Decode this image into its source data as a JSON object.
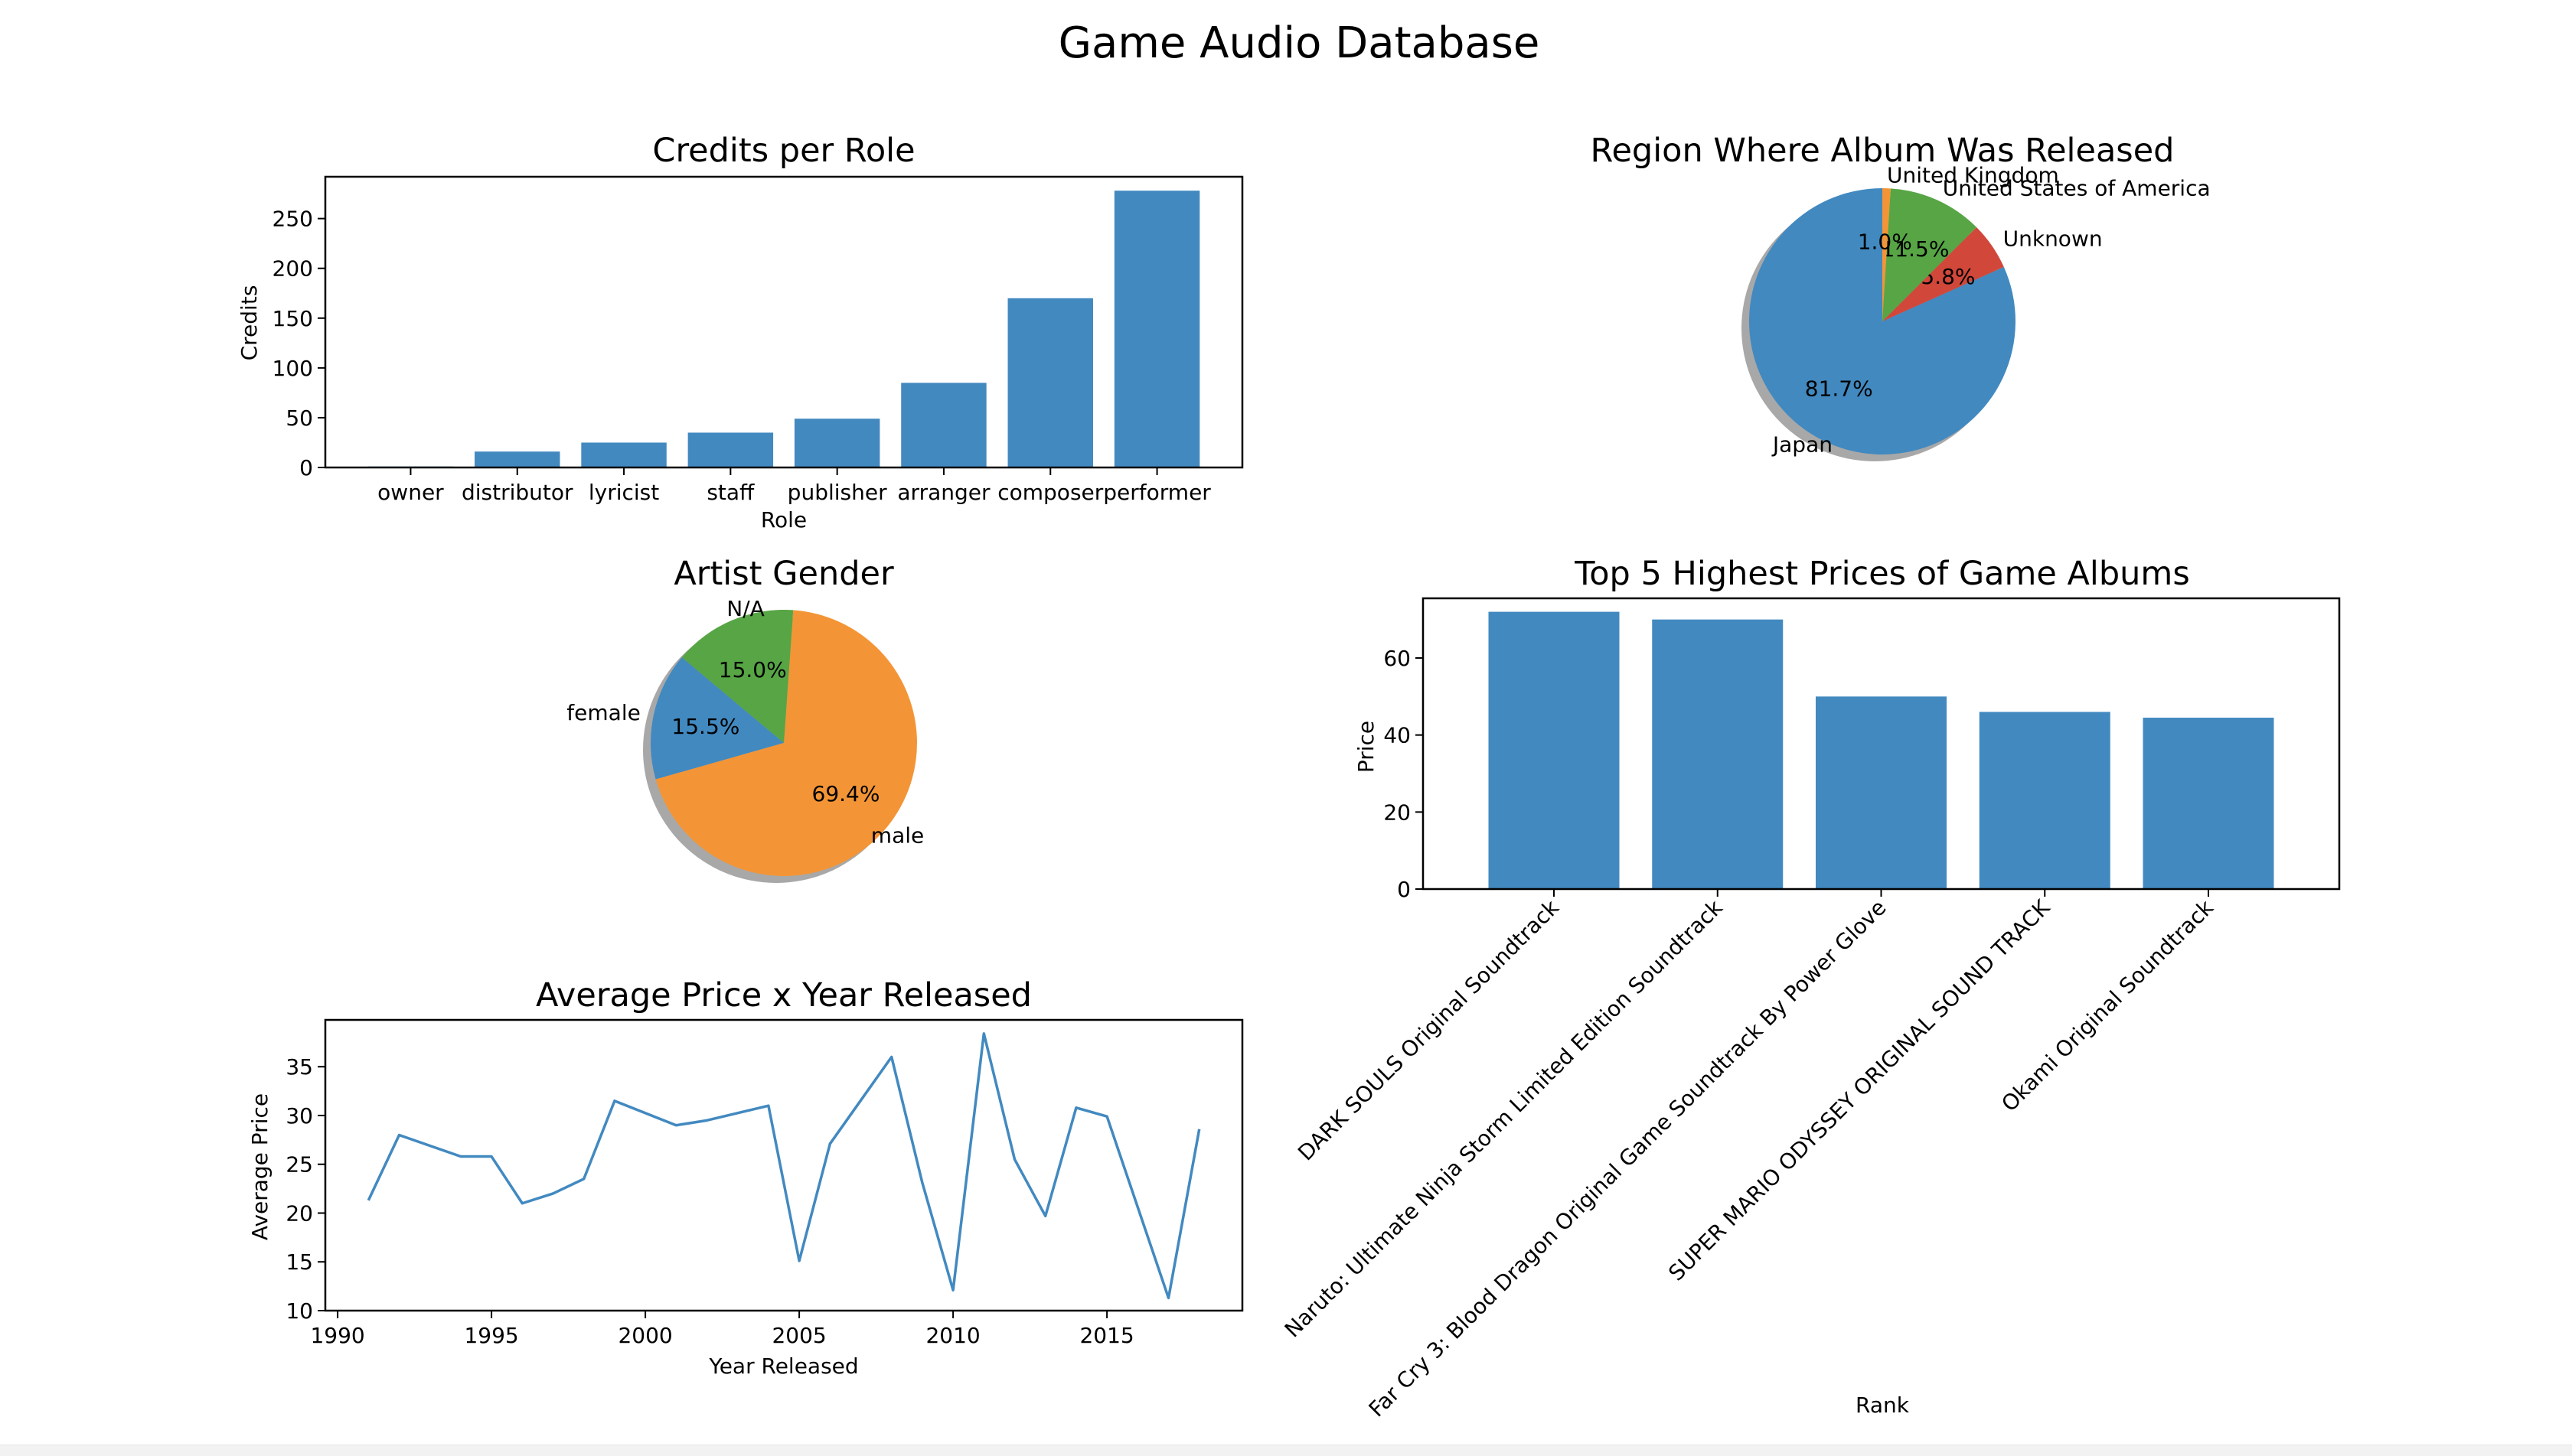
{
  "suptitle": "Game Audio Database",
  "colors": {
    "blue": "#4289c0",
    "orange": "#f39536",
    "green": "#57a545",
    "red": "#d1473a",
    "shadow": "#a8a8a8"
  },
  "chart_data": [
    {
      "id": "credits",
      "type": "bar",
      "title": "Credits per Role",
      "xlabel": "Role",
      "ylabel": "Credits",
      "categories": [
        "owner",
        "distributor",
        "lyricist",
        "staff",
        "publisher",
        "arranger",
        "composer",
        "performer"
      ],
      "values": [
        1,
        16,
        25,
        35,
        49,
        85,
        170,
        278
      ],
      "ylim": [
        0,
        292
      ],
      "yticks": [
        0,
        50,
        100,
        150,
        200,
        250
      ]
    },
    {
      "id": "region",
      "type": "pie",
      "title": "Region Where Album Was Released",
      "labels": [
        "Japan",
        "Unknown",
        "United States of America",
        "United Kingdom"
      ],
      "values": [
        81.7,
        5.8,
        11.5,
        1.0
      ],
      "pct_labels": [
        "81.7%",
        "5.8%",
        "11.5%",
        "1.0%"
      ],
      "colors": [
        "#4289c0",
        "#d1473a",
        "#57a545",
        "#f39536"
      ],
      "shadow": true
    },
    {
      "id": "gender",
      "type": "pie",
      "title": "Artist Gender",
      "labels": [
        "female",
        "male",
        "N/A"
      ],
      "values": [
        15.5,
        69.4,
        15.0
      ],
      "pct_labels": [
        "15.5%",
        "69.4%",
        "15.0%"
      ],
      "colors": [
        "#4289c0",
        "#f39536",
        "#57a545"
      ],
      "shadow": true
    },
    {
      "id": "prices",
      "type": "bar",
      "title": "Top 5 Highest Prices of Game Albums",
      "xlabel": "Rank",
      "ylabel": "Price",
      "categories": [
        "DARK SOULS Original Soundtrack",
        "Naruto: Ultimate Ninja Storm Limited Edition Soundtrack",
        "Far Cry 3: Blood Dragon Original Game Soundtrack By Power Glove",
        "SUPER MARIO ODYSSEY ORIGINAL SOUND TRACK",
        "Okami Original Soundtrack"
      ],
      "values": [
        72,
        70,
        50,
        46,
        44.5
      ],
      "ylim": [
        0,
        75.5
      ],
      "yticks": [
        0,
        20,
        40,
        60
      ]
    },
    {
      "id": "avgprice",
      "type": "line",
      "title": "Average Price x Year Released",
      "xlabel": "Year Released",
      "ylabel": "Average Price",
      "x": [
        1991,
        1992,
        1994,
        1995,
        1996,
        1997,
        1998,
        1999,
        2001,
        2002,
        2004,
        2005,
        2006,
        2008,
        2009,
        2010,
        2011,
        2012,
        2013,
        2014,
        2015,
        2017,
        2018
      ],
      "y": [
        21.3,
        28.0,
        25.8,
        25.8,
        21.0,
        22.0,
        23.5,
        31.5,
        29.0,
        29.5,
        31.0,
        15.1,
        27.1,
        36.0,
        23.1,
        12.1,
        38.4,
        25.5,
        19.7,
        30.8,
        29.9,
        11.3,
        28.6
      ],
      "xlim": [
        1989.6,
        2019.4
      ],
      "ylim": [
        10,
        39.8
      ],
      "xticks": [
        1990,
        1995,
        2000,
        2005,
        2010,
        2015
      ],
      "yticks": [
        10,
        15,
        20,
        25,
        30,
        35
      ]
    }
  ]
}
